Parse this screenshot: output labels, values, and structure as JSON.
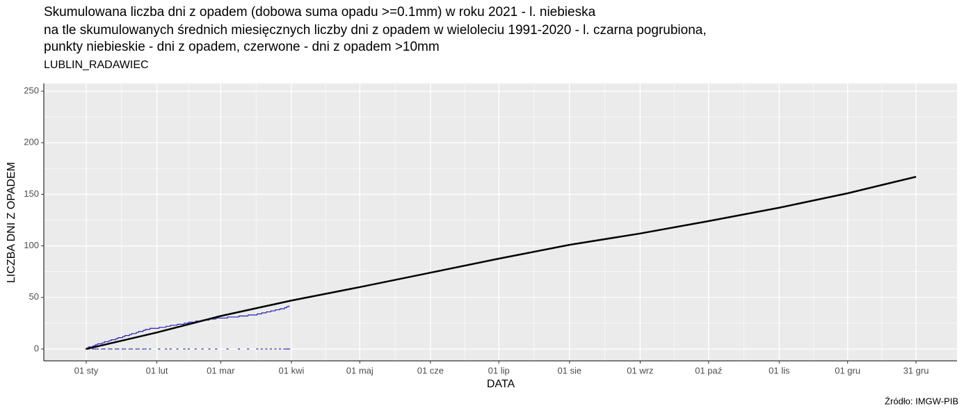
{
  "chart_data": {
    "type": "line",
    "title": [
      "Skumulowana liczba dni z opadem (dobowa suma opadu >=0.1mm) w roku 2021 - l. niebieska",
      "na tle skumulowanych średnich miesięcznych liczby dni z opadem w wieloleciu 1991-2020 - l. czarna pogrubiona,",
      "punkty niebieskie - dni z opadem, czerwone - dni z opadem >10mm"
    ],
    "subtitle": "LUBLIN_RADAWIEC",
    "y_label": "LICZBA DNI Z OPADEM",
    "x_label": "DATA",
    "caption": "Źródło: IMGW-PIB",
    "xlim": [
      -17.6,
      383
    ],
    "ylim": [
      -11.5,
      257.5
    ],
    "xticks": [
      {
        "value": 1,
        "label": "01 sty"
      },
      {
        "value": 32,
        "label": "01 lut"
      },
      {
        "value": 60,
        "label": "01 mar"
      },
      {
        "value": 91,
        "label": "01 kwi"
      },
      {
        "value": 121,
        "label": "01 maj"
      },
      {
        "value": 152,
        "label": "01 cze"
      },
      {
        "value": 182,
        "label": "01 lip"
      },
      {
        "value": 213,
        "label": "01 sie"
      },
      {
        "value": 244,
        "label": "01 wrz"
      },
      {
        "value": 274,
        "label": "01 paź"
      },
      {
        "value": 305,
        "label": "01 lis"
      },
      {
        "value": 335,
        "label": "01 gru"
      },
      {
        "value": 365,
        "label": "31 gru"
      }
    ],
    "yticks": [
      0,
      50,
      100,
      150,
      200,
      250
    ],
    "grid": true,
    "series": [
      {
        "color": "#000000",
        "drawstyle": "line",
        "width": 2.5,
        "x": [
          1,
          32,
          60,
          91,
          121,
          152,
          182,
          213,
          244,
          274,
          305,
          335,
          365
        ],
        "values": [
          0,
          16,
          32,
          47,
          60,
          74,
          87.6,
          101,
          112,
          124,
          137,
          151,
          167
        ]
      },
      {
        "color": "#1f1fb4",
        "drawstyle": "steps",
        "width": 1.2,
        "x": [
          1,
          2,
          4,
          5,
          6,
          8,
          9,
          11,
          12,
          14,
          15,
          17,
          18,
          20,
          21,
          23,
          24,
          26,
          27,
          29,
          33,
          36,
          38,
          41,
          44,
          46,
          49,
          52,
          55,
          58,
          63,
          68,
          72,
          76,
          78,
          80,
          82,
          84,
          86,
          88,
          89,
          90
        ],
        "values": [
          1,
          2,
          3,
          4,
          5,
          6,
          7,
          8,
          9,
          10,
          11,
          12,
          13,
          14,
          15,
          16,
          17,
          18,
          19,
          20,
          21,
          22,
          23,
          24,
          25,
          26,
          27,
          28,
          29,
          30,
          31,
          32,
          33,
          34,
          35,
          36,
          37,
          38,
          39,
          40,
          41,
          42
        ]
      },
      {
        "color": "#1f1fb4",
        "drawstyle": "points",
        "width": 1.2,
        "x": [
          1,
          2,
          4,
          5,
          6,
          8,
          9,
          11,
          12,
          14,
          15,
          17,
          18,
          20,
          21,
          23,
          24,
          26,
          27,
          29,
          33,
          36,
          38,
          41,
          44,
          46,
          49,
          52,
          55,
          58,
          63,
          68,
          72,
          76,
          78,
          80,
          82,
          84,
          86,
          88,
          89,
          90
        ],
        "values": [
          0,
          0,
          0,
          0,
          0,
          0,
          0,
          0,
          0,
          0,
          0,
          0,
          0,
          0,
          0,
          0,
          0,
          0,
          0,
          0,
          0,
          0,
          0,
          0,
          0,
          0,
          0,
          0,
          0,
          0,
          0,
          0,
          0,
          0,
          0,
          0,
          0,
          0,
          0,
          0,
          0,
          0
        ]
      }
    ]
  }
}
